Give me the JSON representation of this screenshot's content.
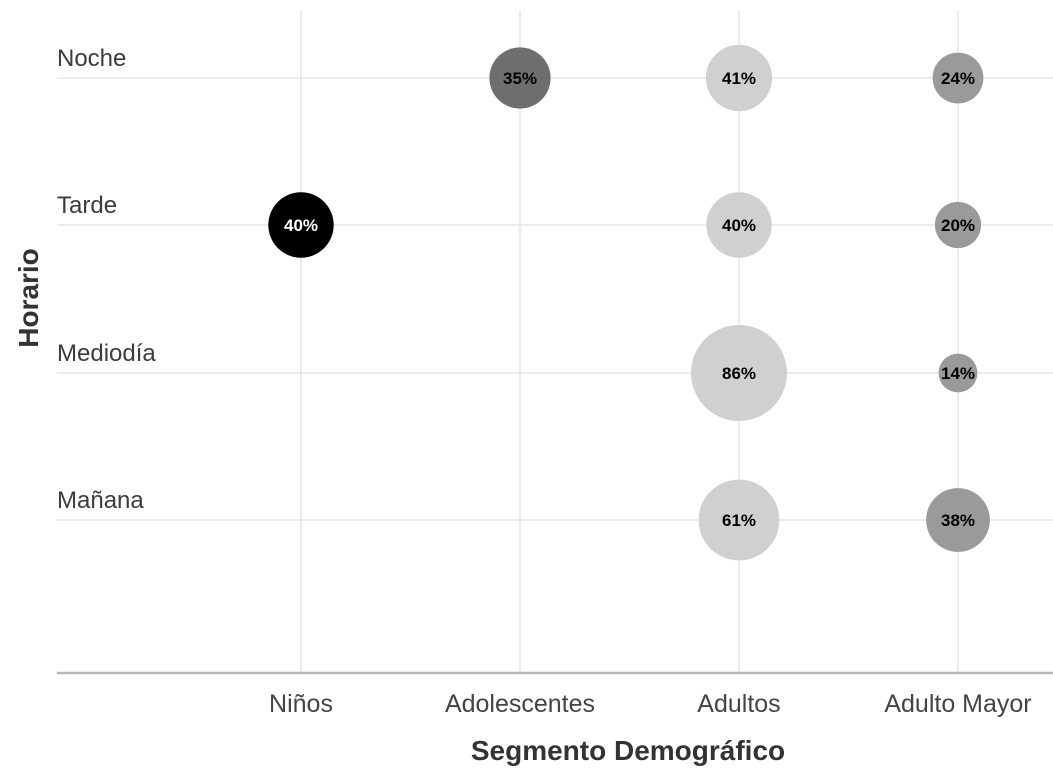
{
  "chart_data": {
    "type": "bubble",
    "xlabel": "Segmento Demográfico",
    "ylabel": "Horario",
    "categories_x": [
      "Niños",
      "Adolescentes",
      "Adultos",
      "Adulto Mayor"
    ],
    "categories_y": [
      "Mañana",
      "Mediodía",
      "Tarde",
      "Noche"
    ],
    "grid": true,
    "points": [
      {
        "x": "Adolescentes",
        "y": "Noche",
        "value": 35,
        "label": "35%",
        "color": "#6e6e6e",
        "label_color": "#000000"
      },
      {
        "x": "Adultos",
        "y": "Noche",
        "value": 41,
        "label": "41%",
        "color": "#d0d0d0",
        "label_color": "#000000"
      },
      {
        "x": "Adulto Mayor",
        "y": "Noche",
        "value": 24,
        "label": "24%",
        "color": "#9a9a9a",
        "label_color": "#000000"
      },
      {
        "x": "Niños",
        "y": "Tarde",
        "value": 40,
        "label": "40%",
        "color": "#000000",
        "label_color": "#ffffff"
      },
      {
        "x": "Adultos",
        "y": "Tarde",
        "value": 40,
        "label": "40%",
        "color": "#d0d0d0",
        "label_color": "#000000"
      },
      {
        "x": "Adulto Mayor",
        "y": "Tarde",
        "value": 20,
        "label": "20%",
        "color": "#9a9a9a",
        "label_color": "#000000"
      },
      {
        "x": "Adultos",
        "y": "Mediodía",
        "value": 86,
        "label": "86%",
        "color": "#d0d0d0",
        "label_color": "#000000"
      },
      {
        "x": "Adulto Mayor",
        "y": "Mediodía",
        "value": 14,
        "label": "14%",
        "color": "#9a9a9a",
        "label_color": "#000000"
      },
      {
        "x": "Adultos",
        "y": "Mañana",
        "value": 61,
        "label": "61%",
        "color": "#d0d0d0",
        "label_color": "#000000"
      },
      {
        "x": "Adulto Mayor",
        "y": "Mañana",
        "value": 38,
        "label": "38%",
        "color": "#9a9a9a",
        "label_color": "#000000"
      }
    ]
  }
}
